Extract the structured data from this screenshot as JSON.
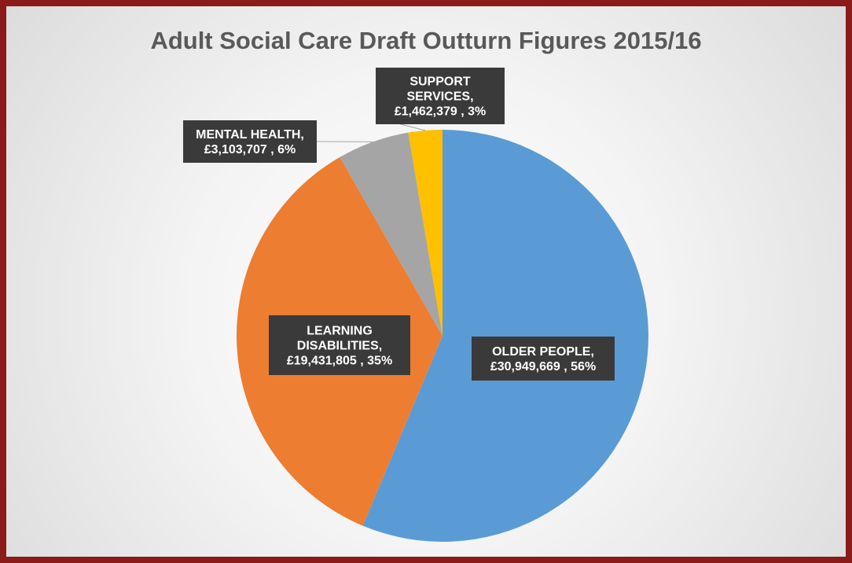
{
  "chart_data": {
    "type": "pie",
    "title": "Adult Social Care Draft Outturn Figures 2015/16",
    "slices": [
      {
        "name": "OLDER PEOPLE",
        "value": 30949669,
        "value_label": "£30,949,669",
        "percent_label": "56%",
        "label_lines": [
          "OLDER PEOPLE,",
          "£30,949,669 , 56%"
        ],
        "color": "#5b9bd5"
      },
      {
        "name": "LEARNING DISABILITIES",
        "value": 19431805,
        "value_label": "£19,431,805",
        "percent_label": "35%",
        "label_lines": [
          "LEARNING",
          "DISABILITIES,",
          "£19,431,805 , 35%"
        ],
        "color": "#ed7d31"
      },
      {
        "name": "MENTAL HEALTH",
        "value": 3103707,
        "value_label": "£3,103,707",
        "percent_label": "6%",
        "label_lines": [
          "MENTAL HEALTH,",
          "£3,103,707 , 6%"
        ],
        "color": "#a5a5a5"
      },
      {
        "name": "SUPPORT SERVICES",
        "value": 1462379,
        "value_label": "£1,462,379",
        "percent_label": "3%",
        "label_lines": [
          "SUPPORT",
          "SERVICES,",
          "£1,462,379 , 3%"
        ],
        "color": "#ffc000"
      }
    ],
    "start_angle": "12 o'clock",
    "direction": "clockwise"
  },
  "colors": {
    "frame": "#8b1a1a",
    "title": "#595959",
    "label_box": "#3a3a3a"
  }
}
